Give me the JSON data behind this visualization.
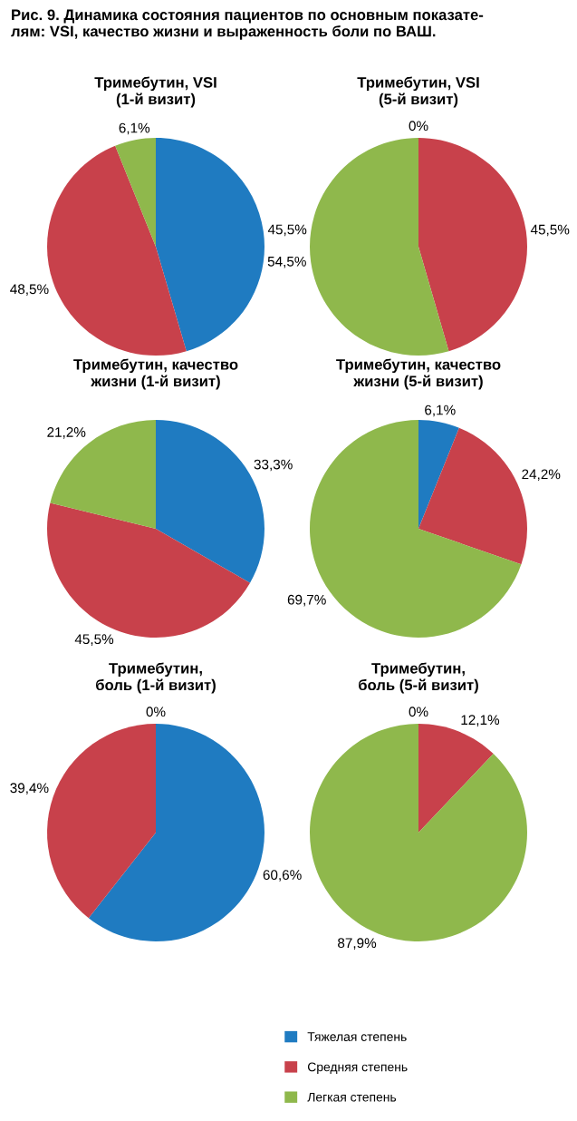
{
  "chart_data": [
    {
      "type": "pie",
      "title": "Тримебутин, VSI\n(1-й визит)",
      "annotations": [
        "Рис. 9. Динамика состояния пациентов по основным показате-\nлям: VSI, качество жизни и выраженность боли по ВАШ."
      ],
      "categories": [
        "Тяжелая степень",
        "Средняя степень",
        "Легкая степень"
      ],
      "values": [
        45.5,
        48.5,
        6.1
      ],
      "value_labels": [
        "45,5%",
        "48,5%",
        "6,1%"
      ],
      "colors": [
        "#1f7bc1",
        "#c8414b",
        "#8fb84c"
      ],
      "legend": "bottom"
    },
    {
      "type": "pie",
      "title": "Тримебутин, VSI\n(5-й визит)",
      "categories": [
        null,
        null,
        null
      ],
      "values": [
        0,
        45.5,
        54.5
      ],
      "value_labels": [
        "0%",
        "45,5%",
        "54,5%"
      ],
      "colors": [
        "#1f7bc1",
        "#c8414b",
        "#8fb84c"
      ]
    },
    {
      "type": "pie",
      "title": "Тримебутин, качество\nжизни (1-й визит)",
      "categories": [
        null,
        null,
        null
      ],
      "values": [
        33.3,
        45.5,
        21.2
      ],
      "value_labels": [
        "33,3%",
        "45,5%",
        "21,2%"
      ],
      "colors": [
        "#1f7bc1",
        "#c8414b",
        "#8fb84c"
      ]
    },
    {
      "type": "pie",
      "title": "Тримебутин, качество\nжизни (5-й визит)",
      "categories": [
        null,
        null,
        null
      ],
      "values": [
        6.1,
        24.2,
        69.7
      ],
      "value_labels": [
        "6,1%",
        "24,2%",
        "69,7%"
      ],
      "colors": [
        "#1f7bc1",
        "#c8414b",
        "#8fb84c"
      ]
    },
    {
      "type": "pie",
      "title": "Тримебутин,\nболь (1-й визит)",
      "categories": [
        null,
        null,
        null
      ],
      "values": [
        60.6,
        39.4,
        0
      ],
      "value_labels": [
        "60,6%",
        "39,4%",
        "0%"
      ],
      "colors": [
        "#1f7bc1",
        "#c8414b",
        "#8fb84c"
      ]
    },
    {
      "type": "pie",
      "title": "Тримебутин,\nболь (5-й визит)",
      "categories": [
        null,
        null,
        null
      ],
      "values": [
        0,
        12.1,
        87.9
      ],
      "value_labels": [
        "0%",
        "12,1%",
        "87,9%"
      ],
      "colors": [
        "#1f7bc1",
        "#c8414b",
        "#8fb84c"
      ]
    }
  ]
}
